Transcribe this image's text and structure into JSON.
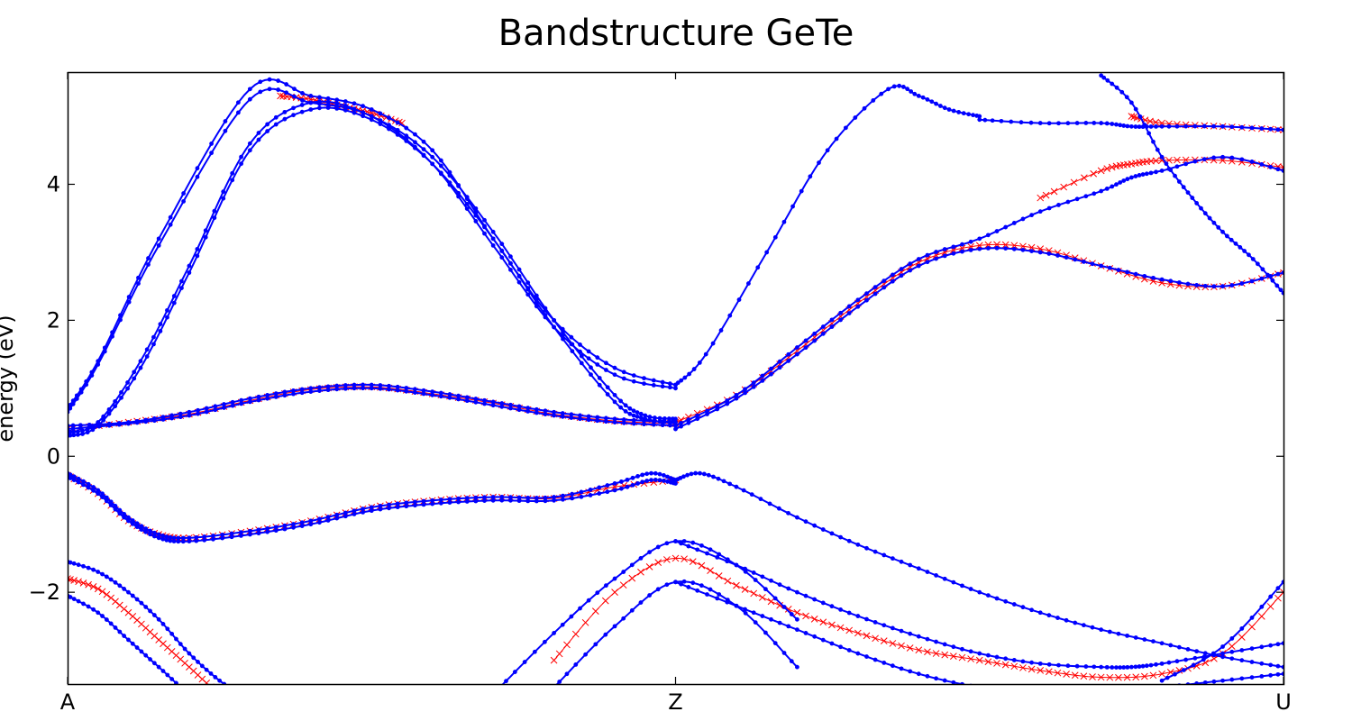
{
  "chart_data": {
    "type": "line",
    "title": "Bandstructure GeTe",
    "xlabel": "",
    "ylabel": "energy (eV)",
    "ylim": [
      -3.35,
      5.65
    ],
    "xlim": [
      0,
      2
    ],
    "xticks": [
      {
        "x": 0,
        "label": "A"
      },
      {
        "x": 1,
        "label": "Z"
      },
      {
        "x": 2,
        "label": "U"
      }
    ],
    "yticks": [
      -2,
      0,
      2,
      4
    ],
    "ytick_labels": [
      "−2",
      "0",
      "2",
      "4"
    ],
    "grid": false,
    "legend": "none",
    "colors": {
      "blue_bands": "#0000ff",
      "red_bands": "#ff0000"
    },
    "series": [
      {
        "marker": "dot",
        "color": "#0000ff",
        "x": [
          0,
          0.05,
          0.15,
          0.3,
          0.4,
          0.5,
          0.6,
          0.7,
          0.8,
          0.9,
          1.0
        ],
        "y": [
          0.7,
          1.4,
          3.2,
          5.4,
          5.3,
          5.1,
          4.5,
          3.2,
          2.0,
          1.3,
          1.05
        ]
      },
      {
        "marker": "dot",
        "color": "#0000ff",
        "x": [
          0,
          0.05,
          0.15,
          0.3,
          0.4,
          0.5,
          0.6,
          0.7,
          0.8,
          0.9,
          1.0
        ],
        "y": [
          0.65,
          1.35,
          3.1,
          5.25,
          5.2,
          5.0,
          4.3,
          3.1,
          1.9,
          1.2,
          1.0
        ]
      },
      {
        "marker": "dot",
        "color": "#0000ff",
        "x": [
          0,
          0.05,
          0.12,
          0.2,
          0.3,
          0.4,
          0.5,
          0.6,
          0.7,
          0.8,
          0.9,
          0.95,
          1.0
        ],
        "y": [
          0.35,
          0.5,
          1.4,
          2.8,
          4.6,
          5.2,
          5.0,
          4.4,
          3.3,
          2.0,
          0.9,
          0.6,
          0.55
        ]
      },
      {
        "marker": "dot",
        "color": "#0000ff",
        "x": [
          0,
          0.05,
          0.12,
          0.2,
          0.3,
          0.4,
          0.5,
          0.6,
          0.7,
          0.8,
          0.9,
          0.95,
          1.0
        ],
        "y": [
          0.3,
          0.45,
          1.3,
          2.7,
          4.5,
          5.1,
          4.95,
          4.3,
          3.2,
          1.9,
          0.8,
          0.55,
          0.5
        ]
      },
      {
        "marker": "dot",
        "color": "#0000ff",
        "x": [
          0,
          0.1,
          0.2,
          0.3,
          0.4,
          0.5,
          0.6,
          0.7,
          0.8,
          0.9,
          1.0
        ],
        "y": [
          0.45,
          0.5,
          0.65,
          0.85,
          1.0,
          1.05,
          0.95,
          0.8,
          0.65,
          0.55,
          0.5
        ]
      },
      {
        "marker": "dot",
        "color": "#0000ff",
        "x": [
          0,
          0.1,
          0.2,
          0.3,
          0.4,
          0.5,
          0.6,
          0.7,
          0.8,
          0.9,
          1.0
        ],
        "y": [
          0.4,
          0.48,
          0.6,
          0.8,
          0.95,
          1.0,
          0.9,
          0.75,
          0.6,
          0.5,
          0.45
        ]
      },
      {
        "marker": "dot",
        "color": "#0000ff",
        "x": [
          1.0,
          1.05,
          1.15,
          1.25,
          1.35,
          1.4,
          1.45,
          1.5
        ],
        "y": [
          1.05,
          1.5,
          3.0,
          4.5,
          5.4,
          5.3,
          5.1,
          5.0
        ]
      },
      {
        "marker": "dot",
        "color": "#0000ff",
        "x": [
          1.5,
          1.6,
          1.7,
          1.75,
          1.8,
          1.9,
          2.0
        ],
        "y": [
          4.95,
          4.9,
          4.9,
          4.85,
          4.85,
          4.85,
          4.8
        ]
      },
      {
        "marker": "dot",
        "color": "#0000ff",
        "x": [
          1.0,
          1.1,
          1.2,
          1.3,
          1.4,
          1.5,
          1.6,
          1.7,
          1.75,
          1.8,
          1.9,
          2.0
        ],
        "y": [
          0.45,
          0.9,
          1.6,
          2.3,
          2.9,
          3.2,
          3.6,
          3.9,
          4.1,
          4.2,
          4.4,
          4.2
        ]
      },
      {
        "marker": "dot",
        "color": "#0000ff",
        "x": [
          1.0,
          1.1,
          1.2,
          1.3,
          1.4,
          1.5,
          1.6,
          1.7,
          1.8,
          1.9,
          2.0
        ],
        "y": [
          0.4,
          0.85,
          1.5,
          2.2,
          2.8,
          3.05,
          3.0,
          2.8,
          2.6,
          2.5,
          2.7
        ]
      },
      {
        "marker": "dot",
        "color": "#0000ff",
        "x": [
          1.7,
          1.75,
          1.8,
          1.85,
          1.9,
          1.95,
          2.0
        ],
        "y": [
          5.6,
          5.2,
          4.4,
          3.8,
          3.3,
          2.9,
          2.4
        ]
      },
      {
        "marker": "dot",
        "color": "#0000ff",
        "x": [
          0,
          0.05,
          0.1,
          0.15,
          0.2,
          0.3,
          0.4,
          0.5,
          0.6,
          0.7,
          0.8,
          0.9,
          0.96,
          1.0
        ],
        "y": [
          -0.25,
          -0.5,
          -0.9,
          -1.15,
          -1.2,
          -1.1,
          -0.95,
          -0.75,
          -0.65,
          -0.6,
          -0.6,
          -0.4,
          -0.25,
          -0.35
        ]
      },
      {
        "marker": "dot",
        "color": "#0000ff",
        "x": [
          0,
          0.05,
          0.1,
          0.15,
          0.2,
          0.3,
          0.4,
          0.5,
          0.6,
          0.7,
          0.8,
          0.9,
          0.96,
          1.0
        ],
        "y": [
          -0.3,
          -0.55,
          -0.95,
          -1.2,
          -1.25,
          -1.15,
          -1.0,
          -0.8,
          -0.7,
          -0.65,
          -0.65,
          -0.5,
          -0.35,
          -0.4
        ]
      },
      {
        "marker": "dot",
        "color": "#0000ff",
        "x": [
          1.0,
          1.04,
          1.1,
          1.2,
          1.3,
          1.4,
          1.5,
          1.6,
          1.7,
          1.8,
          1.9,
          2.0
        ],
        "y": [
          -0.35,
          -0.25,
          -0.45,
          -0.9,
          -1.3,
          -1.65,
          -2.0,
          -2.3,
          -2.55,
          -2.75,
          -2.95,
          -3.1
        ]
      },
      {
        "marker": "dot",
        "color": "#0000ff",
        "x": [
          1.0,
          1.1,
          1.2,
          1.3,
          1.4,
          1.5,
          1.6,
          1.7,
          1.75,
          1.8,
          1.9,
          2.0
        ],
        "y": [
          -1.25,
          -1.6,
          -2.0,
          -2.35,
          -2.65,
          -2.9,
          -3.05,
          -3.1,
          -3.1,
          -3.05,
          -2.9,
          -2.75
        ]
      },
      {
        "marker": "dot",
        "color": "#0000ff",
        "x": [
          1.0,
          1.1,
          1.2,
          1.3,
          1.4,
          1.5,
          1.6,
          1.7,
          1.8,
          1.9,
          2.0
        ],
        "y": [
          -1.85,
          -2.2,
          -2.55,
          -2.9,
          -3.2,
          -3.4,
          -3.5,
          -3.5,
          -3.4,
          -3.3,
          -3.2
        ]
      },
      {
        "marker": "dot",
        "color": "#0000ff",
        "x": [
          0,
          0.05,
          0.1,
          0.15,
          0.2,
          0.25,
          0.3
        ],
        "y": [
          -1.55,
          -1.7,
          -2.0,
          -2.4,
          -2.9,
          -3.3,
          -3.6
        ]
      },
      {
        "marker": "dot",
        "color": "#0000ff",
        "x": [
          0,
          0.05,
          0.1,
          0.15,
          0.2,
          0.25
        ],
        "y": [
          -2.05,
          -2.3,
          -2.7,
          -3.1,
          -3.5,
          -3.8
        ]
      },
      {
        "marker": "dot",
        "color": "#0000ff",
        "x": [
          0.7,
          0.8,
          0.9,
          1.0,
          1.1,
          1.2
        ],
        "y": [
          -3.5,
          -2.6,
          -1.8,
          -1.25,
          -1.6,
          -2.4
        ]
      },
      {
        "marker": "dot",
        "color": "#0000ff",
        "x": [
          0.8,
          0.9,
          1.0,
          1.1,
          1.2
        ],
        "y": [
          -3.4,
          -2.5,
          -1.85,
          -2.2,
          -3.1
        ]
      },
      {
        "marker": "dot",
        "color": "#0000ff",
        "x": [
          1.8,
          1.9,
          2.0
        ],
        "y": [
          -3.3,
          -2.8,
          -1.85
        ]
      },
      {
        "marker": "x",
        "color": "#ff0000",
        "x": [
          0,
          0.1,
          0.2,
          0.3,
          0.4,
          0.5,
          0.6,
          0.7,
          0.8,
          0.9,
          1.0
        ],
        "y": [
          0.4,
          0.5,
          0.62,
          0.82,
          0.98,
          1.02,
          0.92,
          0.78,
          0.62,
          0.52,
          0.48
        ]
      },
      {
        "marker": "x",
        "color": "#ff0000",
        "x": [
          0.35,
          0.4,
          0.45,
          0.5,
          0.55
        ],
        "y": [
          5.3,
          5.25,
          5.15,
          5.05,
          4.9
        ]
      },
      {
        "marker": "x",
        "color": "#ff0000",
        "x": [
          0,
          0.05,
          0.1,
          0.15,
          0.2,
          0.3,
          0.4,
          0.5,
          0.6,
          0.7,
          0.8,
          0.9,
          1.0
        ],
        "y": [
          -0.28,
          -0.55,
          -0.95,
          -1.15,
          -1.2,
          -1.1,
          -0.95,
          -0.75,
          -0.65,
          -0.6,
          -0.62,
          -0.45,
          -0.35
        ]
      },
      {
        "marker": "x",
        "color": "#ff0000",
        "x": [
          0,
          0.05,
          0.1,
          0.15,
          0.2,
          0.25,
          0.3
        ],
        "y": [
          -1.8,
          -1.95,
          -2.3,
          -2.7,
          -3.1,
          -3.5,
          -3.8
        ]
      },
      {
        "marker": "x",
        "color": "#ff0000",
        "x": [
          0.8,
          0.9,
          1.0,
          1.1,
          1.2,
          1.3,
          1.4,
          1.5,
          1.6,
          1.7,
          1.8,
          1.9,
          2.0
        ],
        "y": [
          -3.0,
          -2.0,
          -1.5,
          -1.9,
          -2.3,
          -2.6,
          -2.85,
          -3.0,
          -3.15,
          -3.25,
          -3.2,
          -2.9,
          -2.0
        ]
      },
      {
        "marker": "x",
        "color": "#ff0000",
        "x": [
          1.0,
          1.1,
          1.2,
          1.3,
          1.4,
          1.5,
          1.6,
          1.7,
          1.8,
          1.9,
          2.0
        ],
        "y": [
          0.5,
          0.9,
          1.55,
          2.25,
          2.85,
          3.1,
          3.05,
          2.8,
          2.55,
          2.5,
          2.7
        ]
      },
      {
        "marker": "x",
        "color": "#ff0000",
        "x": [
          1.6,
          1.7,
          1.75,
          1.8,
          1.9,
          2.0
        ],
        "y": [
          3.8,
          4.2,
          4.3,
          4.35,
          4.35,
          4.25
        ]
      },
      {
        "marker": "x",
        "color": "#ff0000",
        "x": [
          1.75,
          1.8,
          1.9,
          2.0
        ],
        "y": [
          5.0,
          4.9,
          4.85,
          4.8
        ]
      }
    ]
  }
}
